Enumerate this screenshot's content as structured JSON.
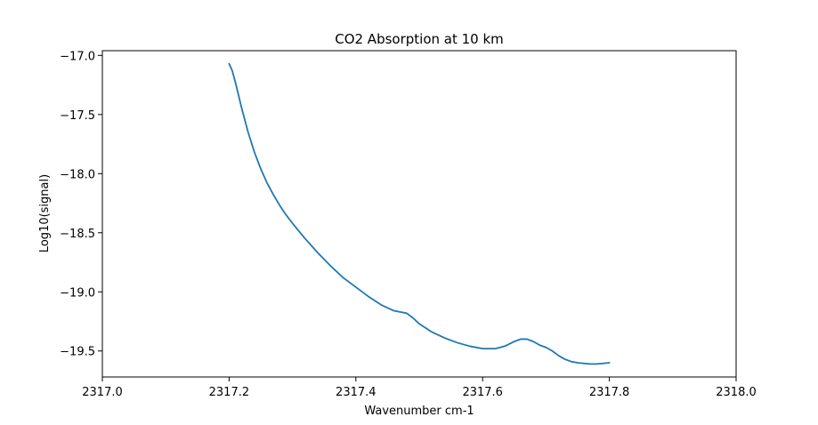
{
  "chart_data": {
    "type": "line",
    "title": "CO2 Absorption at 10 km",
    "xlabel": "Wavenumber cm-1",
    "ylabel": "Log10(signal)",
    "xlim": [
      2317.0,
      2318.0
    ],
    "ylim": [
      -19.72,
      -16.96
    ],
    "xticks": [
      2317.0,
      2317.2,
      2317.4,
      2317.6,
      2317.8,
      2318.0
    ],
    "xtick_labels": [
      "2317.0",
      "2317.2",
      "2317.4",
      "2317.6",
      "2317.8",
      "2318.0"
    ],
    "yticks": [
      -17.0,
      -17.5,
      -18.0,
      -18.5,
      -19.0,
      -19.5
    ],
    "ytick_labels": [
      "−17.0",
      "−17.5",
      "−18.0",
      "−18.5",
      "−19.0",
      "−19.5"
    ],
    "grid": false,
    "series": [
      {
        "color": "#1f77b4",
        "x": [
          2317.2,
          2317.205,
          2317.21,
          2317.22,
          2317.23,
          2317.24,
          2317.25,
          2317.26,
          2317.27,
          2317.28,
          2317.29,
          2317.3,
          2317.32,
          2317.34,
          2317.36,
          2317.38,
          2317.4,
          2317.42,
          2317.44,
          2317.46,
          2317.47,
          2317.48,
          2317.49,
          2317.5,
          2317.52,
          2317.54,
          2317.56,
          2317.58,
          2317.6,
          2317.62,
          2317.635,
          2317.65,
          2317.66,
          2317.67,
          2317.68,
          2317.69,
          2317.7,
          2317.71,
          2317.72,
          2317.73,
          2317.74,
          2317.75,
          2317.76,
          2317.77,
          2317.78,
          2317.79,
          2317.8
        ],
        "y": [
          -17.07,
          -17.13,
          -17.23,
          -17.45,
          -17.65,
          -17.82,
          -17.96,
          -18.08,
          -18.18,
          -18.27,
          -18.35,
          -18.42,
          -18.55,
          -18.67,
          -18.78,
          -18.88,
          -18.96,
          -19.04,
          -19.11,
          -19.16,
          -19.17,
          -19.18,
          -19.22,
          -19.27,
          -19.34,
          -19.39,
          -19.43,
          -19.46,
          -19.48,
          -19.48,
          -19.46,
          -19.42,
          -19.4,
          -19.4,
          -19.42,
          -19.45,
          -19.47,
          -19.5,
          -19.54,
          -19.57,
          -19.59,
          -19.6,
          -19.605,
          -19.61,
          -19.61,
          -19.605,
          -19.6
        ]
      }
    ]
  }
}
